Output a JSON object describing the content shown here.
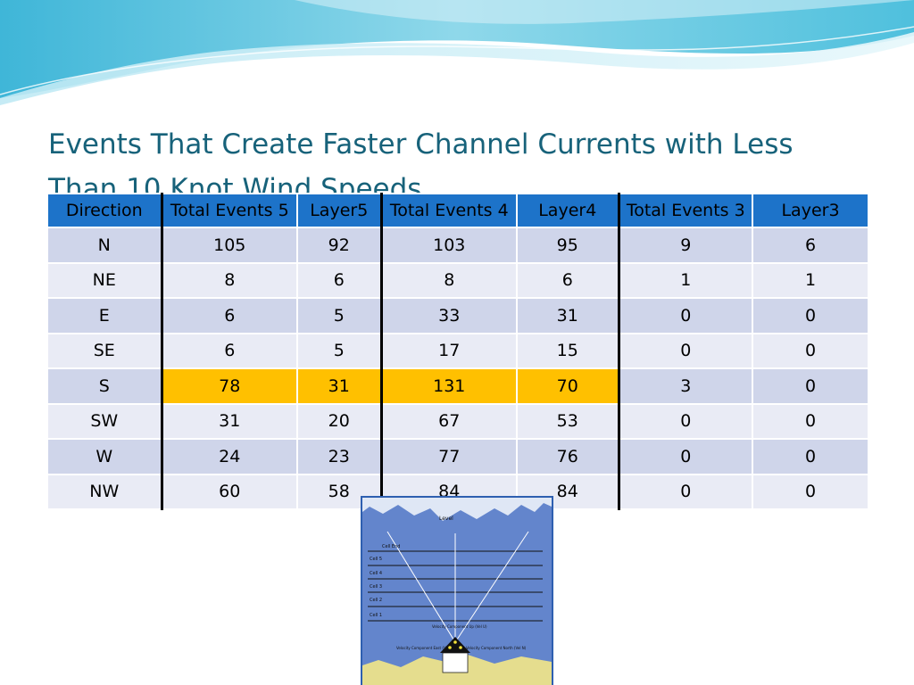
{
  "title": {
    "line1": "Events That Create Faster Channel Currents with Less",
    "line2": "Than 10 Knot Wind Speeds"
  },
  "table": {
    "headers": [
      "Direction",
      "Total Events 5",
      "Layer5",
      "Total Events 4",
      "Layer4",
      "Total Events 3",
      "Layer3"
    ],
    "rows": [
      [
        "N",
        "105",
        "92",
        "103",
        "95",
        "9",
        "6"
      ],
      [
        "NE",
        "8",
        "6",
        "8",
        "6",
        "1",
        "1"
      ],
      [
        "E",
        "6",
        "5",
        "33",
        "31",
        "0",
        "0"
      ],
      [
        "SE",
        "6",
        "5",
        "17",
        "15",
        "0",
        "0"
      ],
      [
        "S",
        "78",
        "31",
        "131",
        "70",
        "3",
        "0"
      ],
      [
        "SW",
        "31",
        "20",
        "67",
        "53",
        "0",
        "0"
      ],
      [
        "W",
        "24",
        "23",
        "77",
        "76",
        "0",
        "0"
      ],
      [
        "NW",
        "60",
        "58",
        "84",
        "84",
        "0",
        "0"
      ]
    ],
    "highlight_color": "#ffc000",
    "header_color": "#1d73c9"
  },
  "diagram": {
    "level": "Level",
    "cell_end": "Cell End",
    "cells": [
      "Cell 5",
      "Cell 4",
      "Cell 3",
      "Cell 2",
      "Cell 1"
    ],
    "velocity_up": "Velocity Component\nUp (Vel U)",
    "velocity_east": "Velocity Component\nEast (Vel E)",
    "velocity_north": "Velocity Component\nNorth (Vel N)"
  }
}
